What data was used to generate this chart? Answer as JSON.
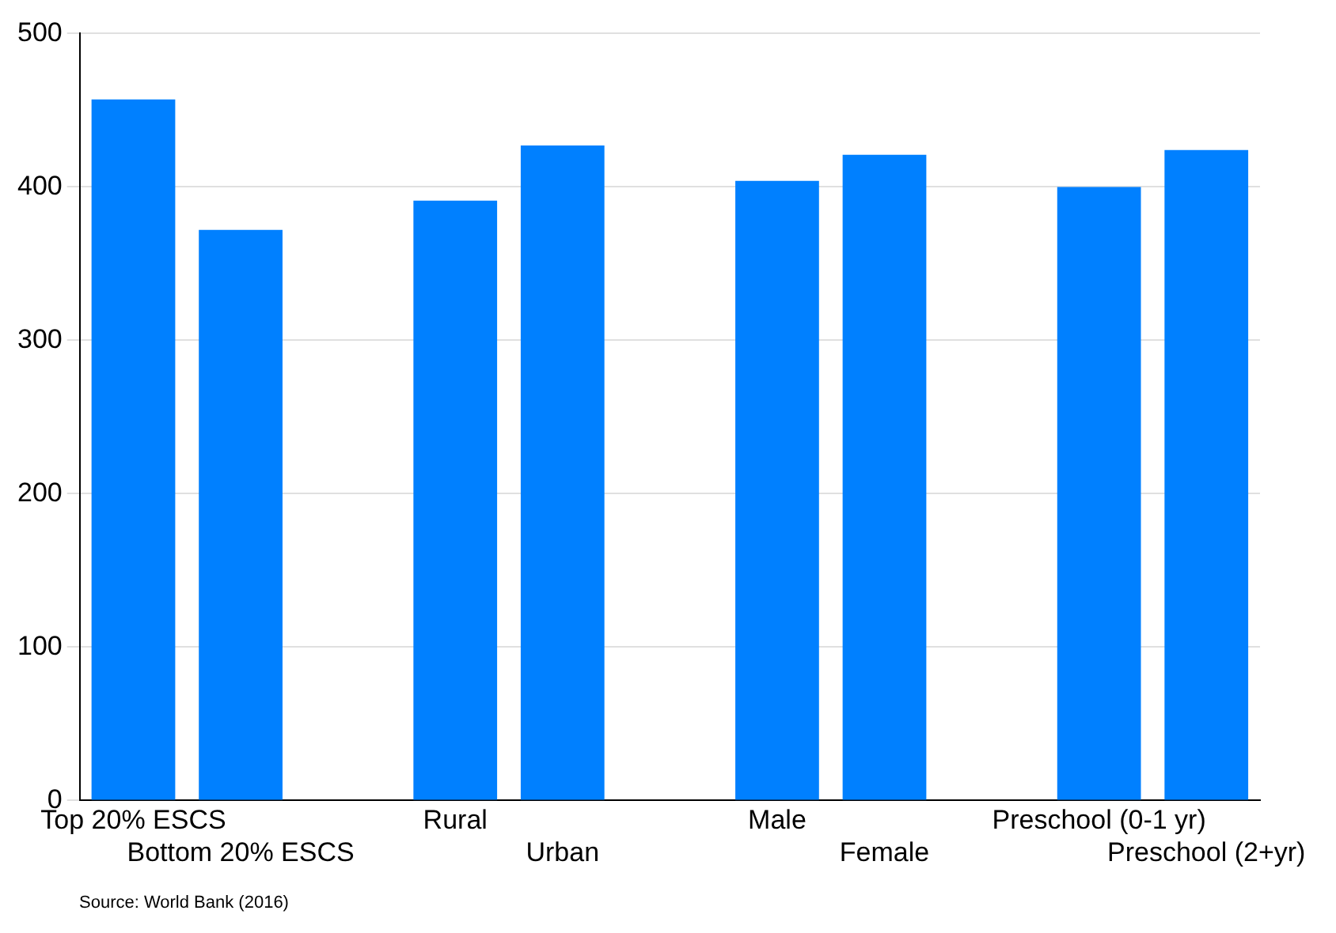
{
  "chart_data": {
    "type": "bar",
    "categories": [
      "Top 20% ESCS",
      "Bottom 20% ESCS",
      null,
      "Rural",
      "Urban",
      null,
      "Male",
      "Female",
      null,
      "Preschool (0-1 yr)",
      "Preschool (2+yr)"
    ],
    "values": [
      457,
      372,
      null,
      391,
      427,
      null,
      404,
      421,
      null,
      400,
      424
    ],
    "color": "#0080ff",
    "ylim": [
      0,
      500
    ],
    "yticks": [
      0,
      100,
      200,
      300,
      400,
      500
    ],
    "grid": "y",
    "annotations": [
      "Source: World Bank (2016)"
    ]
  }
}
